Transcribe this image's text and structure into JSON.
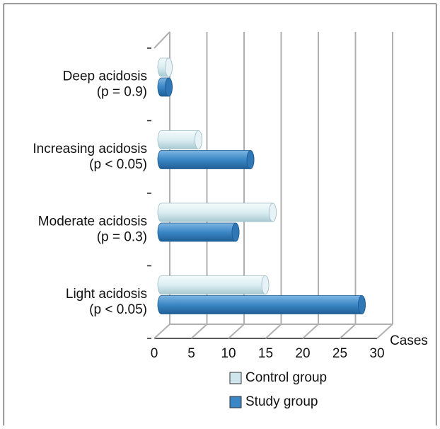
{
  "chart_data": {
    "type": "bar3d_horizontal",
    "categories": [
      [
        "Deep acidosis",
        "(p = 0.9)"
      ],
      [
        "Increasing acidosis",
        "(p < 0.05)"
      ],
      [
        "Moderate acidosis",
        "(p = 0.3)"
      ],
      [
        "Light acidosis",
        "(p < 0.05)"
      ]
    ],
    "series": [
      {
        "name": "Control group",
        "color": "#cfe6ec",
        "values": [
          1,
          5,
          15,
          14
        ]
      },
      {
        "name": "Study group",
        "color": "#3b87c6",
        "values": [
          1,
          12,
          10,
          27
        ]
      }
    ],
    "xlim": [
      0,
      30
    ],
    "xticks": [
      0,
      5,
      10,
      15,
      20,
      25,
      30
    ],
    "xlabel": "Cases",
    "grid": true
  }
}
